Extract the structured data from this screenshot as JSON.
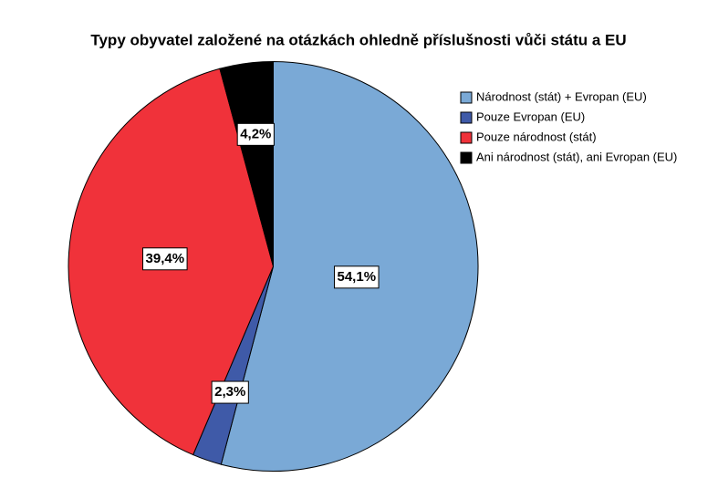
{
  "chart_data": {
    "type": "pie",
    "title": "Typy obyvatel založené na otázkách ohledně příslušnosti vůči státu a EU",
    "categories": [
      "Národnost (stát) + Evropan (EU)",
      "Pouze Evropan (EU)",
      "Pouze národnost (stát)",
      "Ani národnost (stát), ani Evropan (EU)"
    ],
    "values": [
      54.1,
      2.3,
      39.4,
      4.2
    ],
    "value_labels": [
      "54,1%",
      "2,3%",
      "39,4%",
      "4,2%"
    ],
    "colors": [
      "#7aa9d6",
      "#3f5aa8",
      "#f0323a",
      "#000000"
    ],
    "legend": "top-right"
  }
}
